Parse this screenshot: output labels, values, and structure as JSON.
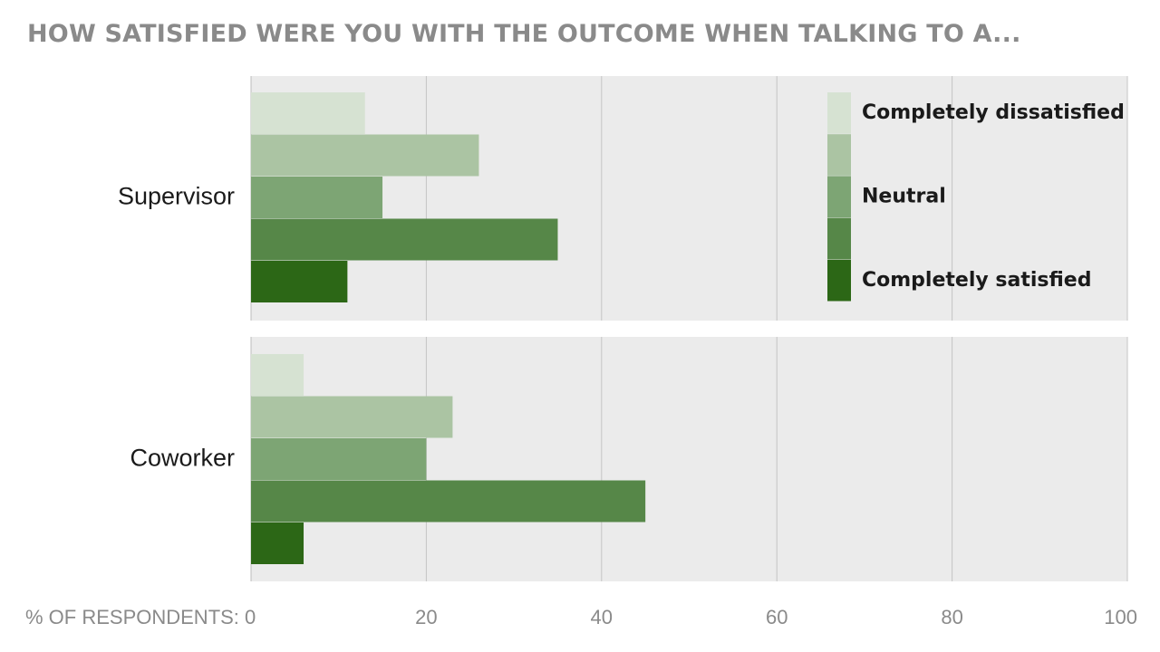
{
  "chart_data": {
    "type": "bar",
    "orientation": "horizontal",
    "title": "HOW SATISFIED WERE YOU WITH THE OUTCOME WHEN TALKING TO A...",
    "xlabel": "% OF RESPONDENTS:",
    "ylabel": "",
    "xlim": [
      0,
      100
    ],
    "xticks": [
      "0",
      "20",
      "40",
      "60",
      "80",
      "100"
    ],
    "grid": true,
    "legend_position": "top-right",
    "categories": [
      "Supervisor",
      "Coworker"
    ],
    "series": [
      {
        "name": "Completely dissatisfied",
        "color": "#d6e2d2",
        "values": [
          13,
          6
        ]
      },
      {
        "name": "",
        "color": "#abc4a3",
        "values": [
          26,
          23
        ]
      },
      {
        "name": "Neutral",
        "color": "#7da574",
        "values": [
          15,
          20
        ]
      },
      {
        "name": "",
        "color": "#568748",
        "values": [
          35,
          45
        ]
      },
      {
        "name": "Completely satisfied",
        "color": "#2c6716",
        "values": [
          11,
          6
        ]
      }
    ]
  }
}
